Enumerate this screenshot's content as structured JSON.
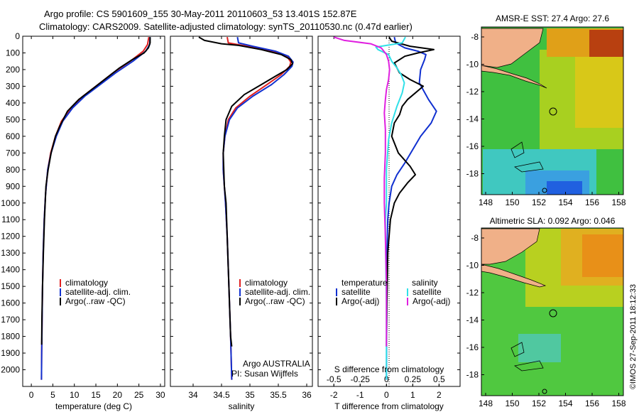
{
  "header": {
    "title_line1": "Argo profile: CS 5901609_155 30-May-2011 20110603_53 13.401S 152.87E",
    "title_line2": "Climatology: CARS2009. Satellite-adjusted climatology: synTS_20110530.nc (0.47d earlier)"
  },
  "footer": {
    "program": "Argo AUSTRALIA",
    "pi": "PI: Susan Wijffels",
    "stamp": "©IMOS 27-Sep-2011 18:12:33"
  },
  "maps": {
    "sst_title": "AMSR-E SST: 27.4 Argo: 27.6",
    "sla_title": "Altimetric SLA: 0.092 Argo: 0.046",
    "lon_ticks": [
      "148",
      "150",
      "152",
      "154",
      "156",
      "158"
    ],
    "lat_ticks": [
      "-8",
      "-10",
      "-12",
      "-14",
      "-16",
      "-18"
    ]
  },
  "colors": {
    "climatology": "#e02020",
    "satellite_adj": "#1030d0",
    "argo": "#000000",
    "sat_salinity_diff": "#30e0e8",
    "argo_salinity_diff": "#e020e0"
  },
  "chart_data": [
    {
      "type": "line",
      "xlabel": "temperature (deg C)",
      "ylabel": "",
      "xlim": [
        -2,
        31
      ],
      "ylim": [
        2100,
        0
      ],
      "y_ticks": [
        0,
        100,
        200,
        300,
        400,
        500,
        600,
        700,
        800,
        900,
        1000,
        1100,
        1200,
        1300,
        1400,
        1500,
        1600,
        1700,
        1800,
        1900,
        2000
      ],
      "x_ticks": [
        0,
        5,
        10,
        15,
        20,
        25,
        30
      ],
      "legend": [
        "climatology",
        "satellite-adj. clim.",
        "Argo(..raw -QC)"
      ],
      "legend_position": "lower-middle",
      "series": [
        {
          "name": "climatology",
          "points": [
            [
              27.3,
              5
            ],
            [
              27.0,
              50
            ],
            [
              26.0,
              90
            ],
            [
              23.0,
              150
            ],
            [
              19.0,
              220
            ],
            [
              15.5,
              290
            ],
            [
              12.0,
              360
            ],
            [
              9.2,
              430
            ],
            [
              7.0,
              510
            ],
            [
              5.6,
              600
            ],
            [
              4.5,
              700
            ],
            [
              3.8,
              800
            ],
            [
              3.3,
              950
            ],
            [
              3.0,
              1100
            ],
            [
              2.75,
              1300
            ],
            [
              2.6,
              1500
            ],
            [
              2.5,
              1700
            ],
            [
              2.4,
              1900
            ],
            [
              2.35,
              2060
            ]
          ]
        },
        {
          "name": "satellite-adj. clim.",
          "points": [
            [
              27.6,
              5
            ],
            [
              27.5,
              50
            ],
            [
              26.6,
              90
            ],
            [
              23.6,
              150
            ],
            [
              19.6,
              220
            ],
            [
              16.0,
              290
            ],
            [
              12.4,
              360
            ],
            [
              9.6,
              430
            ],
            [
              7.3,
              510
            ],
            [
              5.8,
              600
            ],
            [
              4.6,
              700
            ],
            [
              3.8,
              800
            ],
            [
              3.3,
              950
            ],
            [
              3.0,
              1100
            ],
            [
              2.75,
              1300
            ],
            [
              2.6,
              1500
            ],
            [
              2.5,
              1700
            ],
            [
              2.4,
              1900
            ],
            [
              2.35,
              2060
            ]
          ]
        },
        {
          "name": "Argo(..raw -QC)",
          "points": [
            [
              27.6,
              5
            ],
            [
              27.6,
              40
            ],
            [
              27.2,
              70
            ],
            [
              26.2,
              100
            ],
            [
              23.5,
              140
            ],
            [
              20.5,
              190
            ],
            [
              17.5,
              250
            ],
            [
              14.5,
              310
            ],
            [
              11.0,
              380
            ],
            [
              8.4,
              450
            ],
            [
              6.6,
              540
            ],
            [
              5.6,
              600
            ],
            [
              4.6,
              700
            ],
            [
              3.9,
              800
            ],
            [
              3.4,
              900
            ],
            [
              3.05,
              1100
            ],
            [
              2.8,
              1300
            ],
            [
              2.6,
              1500
            ],
            [
              2.45,
              1700
            ],
            [
              2.4,
              1850
            ]
          ]
        }
      ]
    },
    {
      "type": "line",
      "xlabel": "salinity",
      "ylabel": "",
      "xlim": [
        33.6,
        36.1
      ],
      "ylim": [
        2100,
        0
      ],
      "x_ticks": [
        34,
        34.5,
        35,
        35.5,
        36
      ],
      "legend": [
        "climatology",
        "satellite-adj. clim.",
        "Argo(..raw -QC)"
      ],
      "legend_position": "lower-middle",
      "series": [
        {
          "name": "climatology",
          "points": [
            [
              34.6,
              5
            ],
            [
              34.62,
              40
            ],
            [
              34.95,
              60
            ],
            [
              35.4,
              90
            ],
            [
              35.65,
              120
            ],
            [
              35.72,
              155
            ],
            [
              35.7,
              180
            ],
            [
              35.55,
              230
            ],
            [
              35.3,
              290
            ],
            [
              35.0,
              360
            ],
            [
              34.75,
              430
            ],
            [
              34.62,
              500
            ],
            [
              34.56,
              600
            ],
            [
              34.53,
              700
            ],
            [
              34.53,
              800
            ],
            [
              34.55,
              900
            ],
            [
              34.57,
              1000
            ],
            [
              34.6,
              1200
            ],
            [
              34.62,
              1400
            ],
            [
              34.64,
              1600
            ],
            [
              34.66,
              1800
            ],
            [
              34.68,
              2060
            ]
          ]
        },
        {
          "name": "satellite-adj. clim.",
          "points": [
            [
              34.78,
              5
            ],
            [
              34.8,
              40
            ],
            [
              35.05,
              60
            ],
            [
              35.45,
              90
            ],
            [
              35.68,
              120
            ],
            [
              35.76,
              155
            ],
            [
              35.74,
              180
            ],
            [
              35.6,
              230
            ],
            [
              35.38,
              290
            ],
            [
              35.05,
              360
            ],
            [
              34.78,
              430
            ],
            [
              34.64,
              500
            ],
            [
              34.56,
              600
            ],
            [
              34.53,
              700
            ],
            [
              34.53,
              800
            ],
            [
              34.55,
              900
            ],
            [
              34.57,
              1000
            ],
            [
              34.6,
              1200
            ],
            [
              34.62,
              1400
            ],
            [
              34.64,
              1600
            ],
            [
              34.66,
              1800
            ],
            [
              34.68,
              2060
            ]
          ]
        },
        {
          "name": "Argo(..raw -QC)",
          "points": [
            [
              34.1,
              5
            ],
            [
              34.2,
              25
            ],
            [
              34.5,
              45
            ],
            [
              34.8,
              55
            ],
            [
              35.2,
              80
            ],
            [
              35.55,
              110
            ],
            [
              35.72,
              140
            ],
            [
              35.75,
              165
            ],
            [
              35.65,
              200
            ],
            [
              35.45,
              240
            ],
            [
              35.2,
              290
            ],
            [
              34.9,
              350
            ],
            [
              34.68,
              420
            ],
            [
              34.58,
              500
            ],
            [
              34.55,
              600
            ],
            [
              34.53,
              700
            ],
            [
              34.54,
              800
            ],
            [
              34.55,
              900
            ],
            [
              34.58,
              1000
            ],
            [
              34.6,
              1200
            ],
            [
              34.62,
              1400
            ],
            [
              34.64,
              1600
            ],
            [
              34.66,
              1800
            ],
            [
              34.68,
              1860
            ]
          ]
        }
      ]
    },
    {
      "type": "line",
      "xlabel": "T difference from climatology",
      "x2label": "S difference from climatology",
      "ylabel": "",
      "xlim": [
        -2.6,
        2.8
      ],
      "x2lim": [
        -0.65,
        0.7
      ],
      "ylim": [
        2100,
        0
      ],
      "x_ticks": [
        -2,
        -1,
        0,
        1,
        2
      ],
      "x2_ticks": [
        "-0.5",
        "-0.25",
        "0",
        "0.25",
        "0.5"
      ],
      "legend_temperature_title": "temperature",
      "legend_salinity_title": "salinity",
      "legend": [
        "satellite",
        "Argo(-adj)",
        "satellite",
        "Argo(-adj)"
      ],
      "series": [
        {
          "name": "satellite",
          "quantity": "temperature",
          "points": [
            [
              0.3,
              5
            ],
            [
              0.35,
              40
            ],
            [
              0.7,
              70
            ],
            [
              1.2,
              90
            ],
            [
              1.5,
              110
            ],
            [
              1.45,
              140
            ],
            [
              1.3,
              200
            ],
            [
              1.25,
              280
            ],
            [
              1.6,
              380
            ],
            [
              1.9,
              450
            ],
            [
              1.7,
              520
            ],
            [
              1.3,
              600
            ],
            [
              1.0,
              680
            ],
            [
              0.7,
              760
            ],
            [
              0.4,
              830
            ],
            [
              0.2,
              900
            ],
            [
              0.1,
              1000
            ],
            [
              0.05,
              1100
            ],
            [
              0.02,
              1300
            ],
            [
              0.01,
              1600
            ],
            [
              0.0,
              2060
            ]
          ]
        },
        {
          "name": "Argo(-adj)",
          "quantity": "temperature",
          "points": [
            [
              0.1,
              5
            ],
            [
              0.2,
              30
            ],
            [
              0.9,
              60
            ],
            [
              1.8,
              80
            ],
            [
              1.2,
              100
            ],
            [
              0.7,
              120
            ],
            [
              0.3,
              160
            ],
            [
              0.5,
              220
            ],
            [
              0.9,
              260
            ],
            [
              1.4,
              300
            ],
            [
              1.1,
              340
            ],
            [
              0.8,
              380
            ],
            [
              0.6,
              420
            ],
            [
              0.5,
              470
            ],
            [
              0.3,
              520
            ],
            [
              0.2,
              600
            ],
            [
              0.45,
              700
            ],
            [
              0.9,
              780
            ],
            [
              1.1,
              830
            ],
            [
              0.8,
              880
            ],
            [
              0.5,
              940
            ],
            [
              0.3,
              1000
            ],
            [
              0.15,
              1100
            ],
            [
              0.05,
              1300
            ],
            [
              0.02,
              1600
            ],
            [
              0.0,
              1860
            ]
          ]
        },
        {
          "name": "satellite",
          "quantity": "salinity",
          "points": [
            [
              0.18,
              5
            ],
            [
              0.15,
              40
            ],
            [
              -0.1,
              65
            ],
            [
              -0.08,
              80
            ],
            [
              0.02,
              110
            ],
            [
              0.05,
              150
            ],
            [
              0.1,
              190
            ],
            [
              0.14,
              230
            ],
            [
              0.17,
              280
            ],
            [
              0.15,
              340
            ],
            [
              0.1,
              420
            ],
            [
              0.05,
              520
            ],
            [
              0.02,
              620
            ],
            [
              0.0,
              800
            ],
            [
              0.0,
              1000
            ],
            [
              -0.01,
              1100
            ],
            [
              -0.01,
              1200
            ],
            [
              0.0,
              1600
            ],
            [
              0.0,
              2060
            ]
          ]
        },
        {
          "name": "Argo(-adj)",
          "quantity": "salinity",
          "points": [
            [
              -0.5,
              5
            ],
            [
              -0.4,
              25
            ],
            [
              -0.15,
              45
            ],
            [
              -0.05,
              70
            ],
            [
              0.0,
              110
            ],
            [
              0.02,
              150
            ],
            [
              0.03,
              200
            ],
            [
              0.02,
              260
            ],
            [
              0.0,
              320
            ],
            [
              -0.01,
              380
            ],
            [
              -0.02,
              460
            ],
            [
              -0.01,
              560
            ],
            [
              -0.01,
              700
            ],
            [
              -0.02,
              850
            ],
            [
              -0.02,
              1000
            ],
            [
              -0.01,
              1200
            ],
            [
              0.0,
              1500
            ],
            [
              0.0,
              1860
            ]
          ]
        }
      ]
    }
  ]
}
